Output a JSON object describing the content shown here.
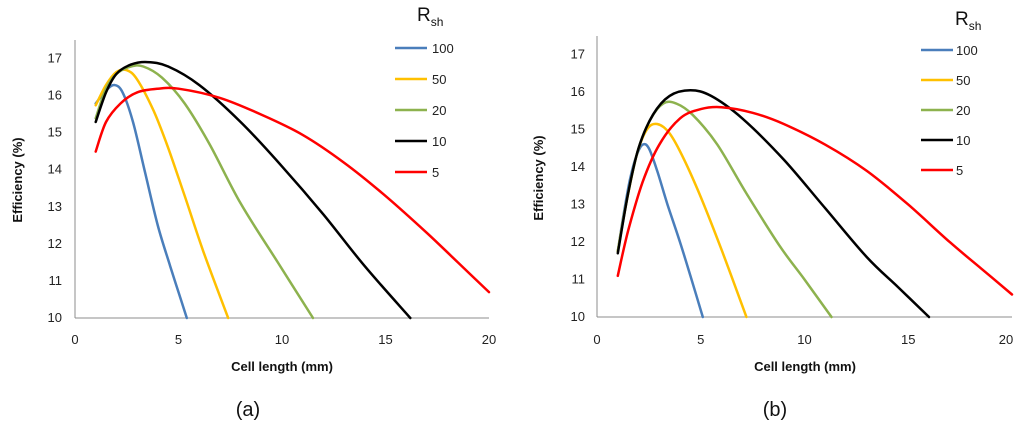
{
  "chart_data": [
    {
      "type": "line",
      "caption": "(a)",
      "xlabel": "Cell length (mm)",
      "ylabel": "Efficiency (%)",
      "xlim": [
        0,
        20
      ],
      "ylim": [
        10,
        17.5
      ],
      "x_ticks": [
        0,
        5,
        10,
        15,
        20
      ],
      "y_ticks": [
        10,
        11,
        12,
        13,
        14,
        15,
        16,
        17
      ],
      "legend_title_main": "R",
      "legend_title_sub": "sh",
      "series": [
        {
          "name": "100",
          "color": "#4a7ebb",
          "points": [
            [
              1,
              15.8
            ],
            [
              1.5,
              16.15
            ],
            [
              1.9,
              16.3
            ],
            [
              2.3,
              16.1
            ],
            [
              2.8,
              15.3
            ],
            [
              3.4,
              13.9
            ],
            [
              4.0,
              12.5
            ],
            [
              4.6,
              11.4
            ],
            [
              5.0,
              10.7
            ],
            [
              5.4,
              10.0
            ]
          ]
        },
        {
          "name": "50",
          "color": "#ffc000",
          "points": [
            [
              1,
              15.75
            ],
            [
              1.5,
              16.3
            ],
            [
              2.0,
              16.65
            ],
            [
              2.5,
              16.7
            ],
            [
              3.0,
              16.45
            ],
            [
              3.8,
              15.6
            ],
            [
              4.5,
              14.6
            ],
            [
              5.3,
              13.3
            ],
            [
              6.2,
              11.8
            ],
            [
              7.4,
              10.0
            ]
          ]
        },
        {
          "name": "20",
          "color": "#8db24e",
          "points": [
            [
              1,
              15.4
            ],
            [
              1.5,
              16.2
            ],
            [
              2.0,
              16.6
            ],
            [
              2.7,
              16.8
            ],
            [
              3.3,
              16.8
            ],
            [
              4.2,
              16.5
            ],
            [
              5.3,
              15.8
            ],
            [
              6.5,
              14.7
            ],
            [
              8.0,
              13.1
            ],
            [
              9.8,
              11.5
            ],
            [
              11.5,
              10.0
            ]
          ]
        },
        {
          "name": "10",
          "color": "#000000",
          "points": [
            [
              1,
              15.3
            ],
            [
              1.5,
              16.1
            ],
            [
              2.0,
              16.6
            ],
            [
              2.7,
              16.85
            ],
            [
              3.5,
              16.92
            ],
            [
              4.5,
              16.8
            ],
            [
              6.0,
              16.3
            ],
            [
              8.0,
              15.3
            ],
            [
              10.0,
              14.1
            ],
            [
              12.0,
              12.8
            ],
            [
              14.0,
              11.4
            ],
            [
              16.2,
              10.0
            ]
          ]
        },
        {
          "name": "5",
          "color": "#ff0000",
          "points": [
            [
              1,
              14.5
            ],
            [
              1.5,
              15.3
            ],
            [
              2.2,
              15.8
            ],
            [
              3.0,
              16.1
            ],
            [
              4.0,
              16.2
            ],
            [
              5.0,
              16.2
            ],
            [
              7.0,
              15.95
            ],
            [
              9.0,
              15.5
            ],
            [
              11.0,
              14.95
            ],
            [
              13.0,
              14.2
            ],
            [
              15.0,
              13.3
            ],
            [
              17.0,
              12.3
            ],
            [
              18.5,
              11.5
            ],
            [
              20.0,
              10.7
            ]
          ]
        }
      ]
    },
    {
      "type": "line",
      "caption": "(b)",
      "xlabel": "Cell length (mm)",
      "ylabel": "Efficiency (%)",
      "xlim": [
        0,
        20
      ],
      "ylim": [
        10,
        17.5
      ],
      "x_ticks": [
        0,
        5,
        10,
        15,
        20
      ],
      "y_ticks": [
        10,
        11,
        12,
        13,
        14,
        15,
        16,
        17
      ],
      "legend_title_main": "R",
      "legend_title_sub": "sh",
      "series": [
        {
          "name": "100",
          "color": "#4a7ebb",
          "points": [
            [
              1,
              11.75
            ],
            [
              1.3,
              12.8
            ],
            [
              1.6,
              13.7
            ],
            [
              1.9,
              14.3
            ],
            [
              2.2,
              14.6
            ],
            [
              2.5,
              14.5
            ],
            [
              2.9,
              13.9
            ],
            [
              3.4,
              13.0
            ],
            [
              4.0,
              12.0
            ],
            [
              4.5,
              11.1
            ],
            [
              5.1,
              10.0
            ]
          ]
        },
        {
          "name": "50",
          "color": "#ffc000",
          "points": [
            [
              1,
              11.75
            ],
            [
              1.4,
              13.0
            ],
            [
              1.9,
              14.3
            ],
            [
              2.4,
              15.0
            ],
            [
              2.9,
              15.15
            ],
            [
              3.5,
              14.9
            ],
            [
              4.2,
              14.2
            ],
            [
              5.0,
              13.2
            ],
            [
              6.0,
              11.8
            ],
            [
              7.2,
              10.0
            ]
          ]
        },
        {
          "name": "20",
          "color": "#8db24e",
          "points": [
            [
              1,
              11.75
            ],
            [
              1.5,
              13.3
            ],
            [
              2.0,
              14.5
            ],
            [
              2.6,
              15.3
            ],
            [
              3.2,
              15.7
            ],
            [
              3.8,
              15.7
            ],
            [
              4.6,
              15.4
            ],
            [
              5.8,
              14.6
            ],
            [
              7.2,
              13.3
            ],
            [
              8.8,
              11.9
            ],
            [
              10.0,
              11.0
            ],
            [
              11.3,
              10.0
            ]
          ]
        },
        {
          "name": "10",
          "color": "#000000",
          "points": [
            [
              1,
              11.7
            ],
            [
              1.5,
              13.3
            ],
            [
              2.0,
              14.5
            ],
            [
              2.7,
              15.4
            ],
            [
              3.5,
              15.9
            ],
            [
              4.5,
              16.05
            ],
            [
              5.5,
              15.9
            ],
            [
              7.0,
              15.3
            ],
            [
              9.0,
              14.2
            ],
            [
              11.0,
              12.9
            ],
            [
              13.0,
              11.6
            ],
            [
              14.5,
              10.8
            ],
            [
              16.0,
              10.0
            ]
          ]
        },
        {
          "name": "5",
          "color": "#ff0000",
          "points": [
            [
              1,
              11.1
            ],
            [
              1.5,
              12.3
            ],
            [
              2.2,
              13.6
            ],
            [
              3.0,
              14.6
            ],
            [
              4.0,
              15.3
            ],
            [
              5.0,
              15.55
            ],
            [
              6.0,
              15.6
            ],
            [
              7.5,
              15.45
            ],
            [
              9.0,
              15.15
            ],
            [
              11.0,
              14.6
            ],
            [
              13.0,
              13.9
            ],
            [
              15.0,
              13.0
            ],
            [
              17.0,
              12.0
            ],
            [
              18.5,
              11.3
            ],
            [
              20.0,
              10.6
            ]
          ]
        }
      ]
    }
  ]
}
